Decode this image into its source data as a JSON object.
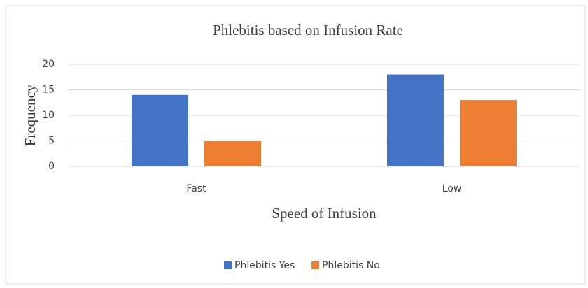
{
  "chart_data": {
    "type": "bar",
    "title": "Phlebitis based on Infusion Rate",
    "x_label": "Speed of Infusion",
    "y_label": "Frequency",
    "categories": [
      "Fast",
      "Low"
    ],
    "series": [
      {
        "name": "Phlebitis Yes",
        "color": "#4472c4",
        "values": [
          14,
          18
        ]
      },
      {
        "name": "Phlebitis No",
        "color": "#ed7d31",
        "values": [
          5,
          13
        ]
      }
    ],
    "ylim": [
      0,
      20
    ],
    "yticks": [
      0,
      5,
      10,
      15,
      20
    ],
    "grid": true,
    "legend": "bottom"
  }
}
